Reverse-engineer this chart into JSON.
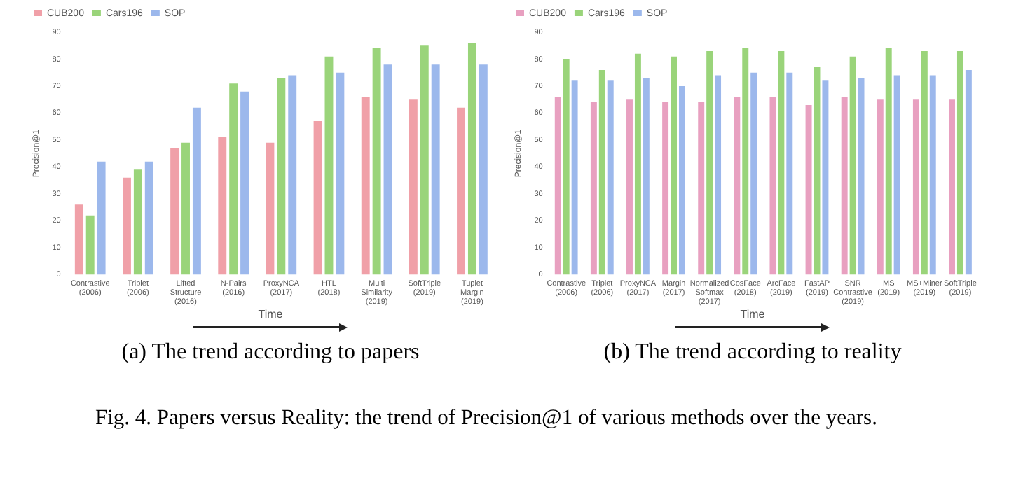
{
  "chart_data": [
    {
      "type": "bar",
      "ylabel": "Precision@1",
      "xlabel": "Time",
      "legend": "top left",
      "grid": false,
      "categories": [
        "Contrastive (2006)",
        "Triplet (2006)",
        "Lifted Structure (2016)",
        "N-Pairs (2016)",
        "ProxyNCA (2017)",
        "HTL (2018)",
        "Multi Similarity (2019)",
        "SoftTriple (2019)",
        "Tuplet Margin (2019)"
      ],
      "series": [
        {
          "name": "CUB200",
          "color": "#f0a0a8",
          "values": [
            26,
            36,
            47,
            51,
            49,
            57,
            66,
            65,
            62
          ]
        },
        {
          "name": "Cars196",
          "color": "#9ad47a",
          "values": [
            22,
            39,
            49,
            71,
            73,
            81,
            84,
            85,
            86
          ]
        },
        {
          "name": "SOP",
          "color": "#9cb8ec",
          "values": [
            42,
            42,
            62,
            68,
            74,
            75,
            78,
            78,
            78
          ]
        }
      ],
      "ylim": [
        0,
        90
      ],
      "yticks": [
        0,
        10,
        20,
        30,
        40,
        50,
        60,
        70,
        80,
        90
      ],
      "annotations": [
        "(a) The trend according to papers",
        "Fig. 4. Papers versus Reality: the trend of Precision@1 of various methods over the years."
      ]
    },
    {
      "type": "bar",
      "ylabel": "Precision@1",
      "xlabel": "Time",
      "legend": "top left",
      "grid": false,
      "categories": [
        "Contrastive (2006)",
        "Triplet (2006)",
        "ProxyNCA (2017)",
        "Margin (2017)",
        "Normalized Softmax (2017)",
        "CosFace (2018)",
        "ArcFace (2019)",
        "FastAP (2019)",
        "SNR Contrastive (2019)",
        "MS (2019)",
        "MS+Miner (2019)",
        "SoftTriple (2019)"
      ],
      "series": [
        {
          "name": "CUB200",
          "color": "#e8a0c0",
          "values": [
            66,
            64,
            65,
            64,
            64,
            66,
            66,
            63,
            66,
            65,
            65,
            65
          ]
        },
        {
          "name": "Cars196",
          "color": "#9ad47a",
          "values": [
            80,
            76,
            82,
            81,
            83,
            84,
            83,
            77,
            81,
            84,
            83,
            83
          ]
        },
        {
          "name": "SOP",
          "color": "#9cb8ec",
          "values": [
            72,
            72,
            73,
            70,
            74,
            75,
            75,
            72,
            73,
            74,
            74,
            76
          ]
        }
      ],
      "ylim": [
        0,
        90
      ],
      "yticks": [
        0,
        10,
        20,
        30,
        40,
        50,
        60,
        70,
        80,
        90
      ],
      "annotations": [
        "(b) The trend according to reality"
      ]
    }
  ]
}
